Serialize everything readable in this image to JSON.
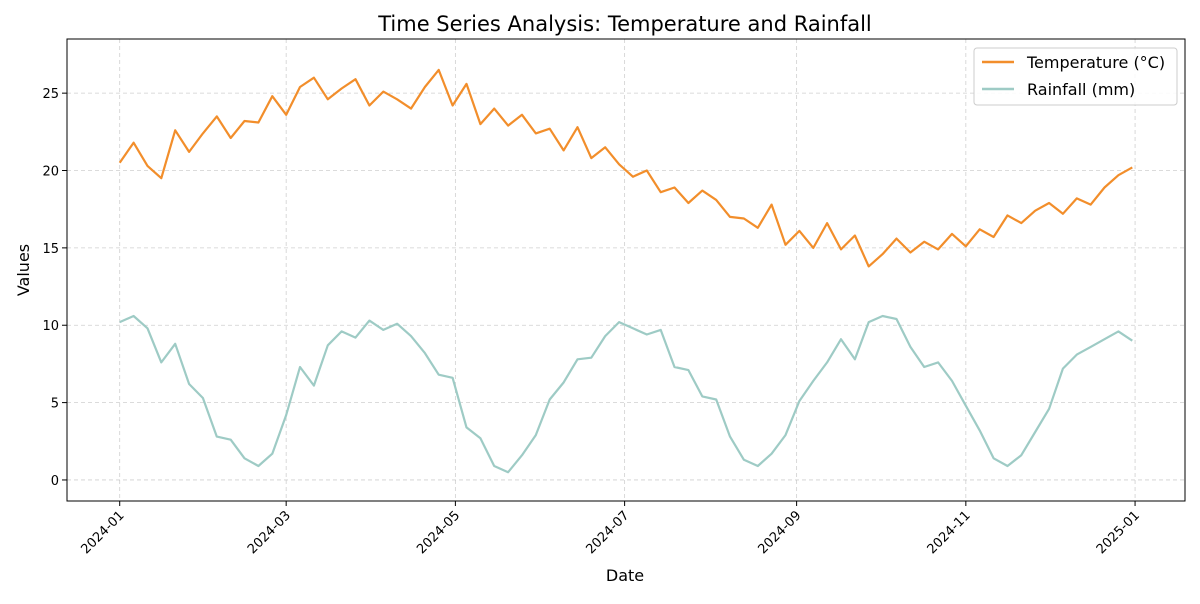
{
  "chart_data": {
    "type": "line",
    "title": "Time Series Analysis: Temperature and Rainfall",
    "xlabel": "Date",
    "ylabel": "Values",
    "xlim": [
      "2023-12-13",
      "2025-01-19"
    ],
    "ylim": [
      -1.36,
      28.5
    ],
    "grid": true,
    "legend_position": "top-right",
    "x_ticks": [
      {
        "date": "2024-01-01",
        "label": "2024-01"
      },
      {
        "date": "2024-03-01",
        "label": "2024-03"
      },
      {
        "date": "2024-05-01",
        "label": "2024-05"
      },
      {
        "date": "2024-07-01",
        "label": "2024-07"
      },
      {
        "date": "2024-09-01",
        "label": "2024-09"
      },
      {
        "date": "2024-11-01",
        "label": "2024-11"
      },
      {
        "date": "2025-01-01",
        "label": "2025-01"
      }
    ],
    "y_ticks": [
      0,
      5,
      10,
      15,
      20,
      25
    ],
    "x": [
      "2024-01-01",
      "2024-01-06",
      "2024-01-11",
      "2024-01-16",
      "2024-01-21",
      "2024-01-26",
      "2024-01-31",
      "2024-02-05",
      "2024-02-10",
      "2024-02-15",
      "2024-02-20",
      "2024-02-25",
      "2024-03-01",
      "2024-03-06",
      "2024-03-11",
      "2024-03-16",
      "2024-03-21",
      "2024-03-26",
      "2024-03-31",
      "2024-04-05",
      "2024-04-10",
      "2024-04-15",
      "2024-04-20",
      "2024-04-25",
      "2024-04-30",
      "2024-05-05",
      "2024-05-10",
      "2024-05-15",
      "2024-05-20",
      "2024-05-25",
      "2024-05-30",
      "2024-06-04",
      "2024-06-09",
      "2024-06-14",
      "2024-06-19",
      "2024-06-24",
      "2024-06-29",
      "2024-07-04",
      "2024-07-09",
      "2024-07-14",
      "2024-07-19",
      "2024-07-24",
      "2024-07-29",
      "2024-08-03",
      "2024-08-08",
      "2024-08-13",
      "2024-08-18",
      "2024-08-23",
      "2024-08-28",
      "2024-09-02",
      "2024-09-07",
      "2024-09-12",
      "2024-09-17",
      "2024-09-22",
      "2024-09-27",
      "2024-10-02",
      "2024-10-07",
      "2024-10-12",
      "2024-10-17",
      "2024-10-22",
      "2024-10-27",
      "2024-11-01",
      "2024-11-06",
      "2024-11-11",
      "2024-11-16",
      "2024-11-21",
      "2024-11-26",
      "2024-12-01",
      "2024-12-06",
      "2024-12-11",
      "2024-12-16",
      "2024-12-21",
      "2024-12-26",
      "2024-12-31"
    ],
    "series": [
      {
        "name": "Temperature (°C)",
        "color": "#f28e2b",
        "values": [
          20.5,
          21.8,
          20.3,
          19.5,
          22.6,
          21.2,
          22.4,
          23.5,
          22.1,
          23.2,
          23.1,
          24.8,
          23.6,
          25.4,
          26.0,
          24.6,
          25.3,
          25.9,
          24.2,
          25.1,
          24.6,
          24.0,
          25.4,
          26.5,
          24.2,
          25.6,
          23.0,
          24.0,
          22.9,
          23.6,
          22.4,
          22.7,
          21.3,
          22.8,
          20.8,
          21.5,
          20.4,
          19.6,
          20.0,
          18.6,
          18.9,
          17.9,
          18.7,
          18.1,
          17.0,
          16.9,
          16.3,
          17.8,
          15.2,
          16.1,
          15.0,
          16.6,
          14.9,
          15.8,
          13.8,
          14.6,
          15.6,
          14.7,
          15.4,
          14.9,
          15.9,
          15.1,
          16.2,
          15.7,
          17.1,
          16.6,
          17.4,
          17.9,
          17.2,
          18.2,
          17.8,
          18.9,
          19.7,
          20.2
        ]
      },
      {
        "name": "Rainfall (mm)",
        "color": "#9ecbc5",
        "values": [
          10.2,
          10.6,
          9.8,
          7.6,
          8.8,
          6.2,
          5.3,
          2.8,
          2.6,
          1.4,
          0.9,
          1.7,
          4.2,
          7.3,
          6.1,
          8.7,
          9.6,
          9.2,
          10.3,
          9.7,
          10.1,
          9.3,
          8.2,
          6.8,
          6.6,
          3.4,
          2.7,
          0.9,
          0.5,
          1.6,
          2.9,
          5.2,
          6.3,
          7.8,
          7.9,
          9.3,
          10.2,
          9.8,
          9.4,
          9.7,
          7.3,
          7.1,
          5.4,
          5.2,
          2.8,
          1.3,
          0.9,
          1.7,
          2.9,
          5.1,
          6.4,
          7.6,
          9.1,
          7.8,
          10.2,
          10.6,
          10.4,
          8.6,
          7.3,
          7.6,
          6.4,
          4.8,
          3.2,
          1.4,
          0.9,
          1.6,
          3.1,
          4.6,
          7.2,
          8.1,
          8.6,
          9.1,
          9.6,
          9.0
        ]
      }
    ]
  }
}
